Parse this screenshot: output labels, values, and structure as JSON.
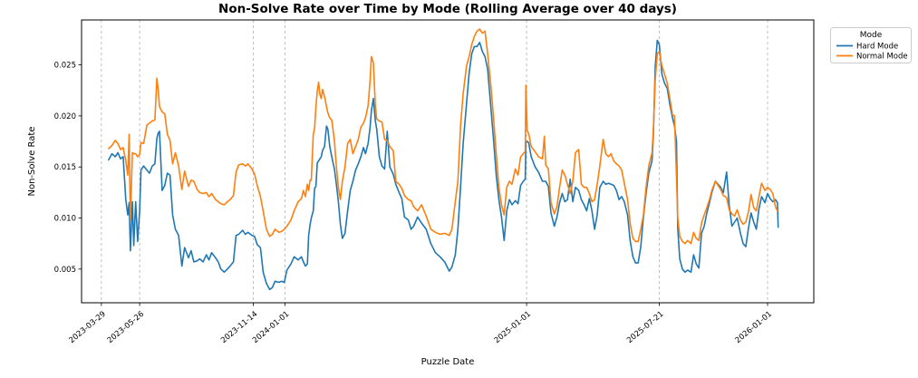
{
  "chart_data": {
    "type": "line",
    "title": "Non-Solve Rate over Time by Mode (Rolling Average over 40 days)",
    "xlabel": "Puzzle Date",
    "ylabel": "Non-Solve Rate",
    "legend_title": "Mode",
    "legend_position": "outside-right",
    "grid": "vertical-dashed",
    "x_tick_labels": [
      "2023-03-29",
      "2023-05-26",
      "2023-11-14",
      "2024-01-01",
      "2025-01-01",
      "2025-07-21",
      "2026-01-01"
    ],
    "y_tick_labels": [
      "0.005",
      "0.010",
      "0.015",
      "0.020",
      "0.025"
    ],
    "x_domain": [
      "2023-02-27",
      "2026-03-12"
    ],
    "y_domain": [
      0.0017,
      0.0294
    ],
    "dates": [
      "2023-04-09",
      "2023-04-14",
      "2023-04-19",
      "2023-04-23",
      "2023-04-27",
      "2023-05-01",
      "2023-05-05",
      "2023-05-08",
      "2023-05-10",
      "2023-05-12",
      "2023-05-15",
      "2023-05-17",
      "2023-05-20",
      "2023-05-23",
      "2023-05-26",
      "2023-05-28",
      "2023-06-01",
      "2023-06-06",
      "2023-06-10",
      "2023-06-14",
      "2023-06-18",
      "2023-06-21",
      "2023-06-23",
      "2023-06-25",
      "2023-06-29",
      "2023-07-03",
      "2023-07-07",
      "2023-07-11",
      "2023-07-15",
      "2023-07-19",
      "2023-07-24",
      "2023-07-29",
      "2023-08-02",
      "2023-08-08",
      "2023-08-12",
      "2023-08-16",
      "2023-08-21",
      "2023-08-25",
      "2023-08-30",
      "2023-09-04",
      "2023-09-08",
      "2023-09-12",
      "2023-09-18",
      "2023-09-22",
      "2023-09-26",
      "2023-10-01",
      "2023-10-06",
      "2023-10-10",
      "2023-10-15",
      "2023-10-19",
      "2023-10-23",
      "2023-10-29",
      "2023-11-02",
      "2023-11-06",
      "2023-11-12",
      "2023-11-16",
      "2023-11-20",
      "2023-11-25",
      "2023-11-29",
      "2023-12-04",
      "2023-12-09",
      "2023-12-13",
      "2023-12-17",
      "2023-12-23",
      "2023-12-27",
      "2023-12-31",
      "2024-01-04",
      "2024-01-10",
      "2024-01-15",
      "2024-01-21",
      "2024-01-26",
      "2024-01-29",
      "2024-02-01",
      "2024-02-04",
      "2024-02-06",
      "2024-02-08",
      "2024-02-10",
      "2024-02-13",
      "2024-02-15",
      "2024-02-17",
      "2024-02-19",
      "2024-02-21",
      "2024-02-23",
      "2024-02-25",
      "2024-02-27",
      "2024-03-01",
      "2024-03-04",
      "2024-03-06",
      "2024-03-09",
      "2024-03-12",
      "2024-03-16",
      "2024-03-19",
      "2024-03-22",
      "2024-03-25",
      "2024-03-28",
      "2024-04-01",
      "2024-04-05",
      "2024-04-09",
      "2024-04-13",
      "2024-04-17",
      "2024-04-21",
      "2024-04-25",
      "2024-04-29",
      "2024-05-02",
      "2024-05-06",
      "2024-05-09",
      "2024-05-11",
      "2024-05-14",
      "2024-05-17",
      "2024-05-19",
      "2024-05-23",
      "2024-05-27",
      "2024-05-31",
      "2024-06-04",
      "2024-06-08",
      "2024-06-13",
      "2024-06-17",
      "2024-06-22",
      "2024-06-26",
      "2024-06-30",
      "2024-07-06",
      "2024-07-10",
      "2024-07-14",
      "2024-07-20",
      "2024-07-26",
      "2024-08-02",
      "2024-08-09",
      "2024-08-16",
      "2024-08-23",
      "2024-08-30",
      "2024-09-06",
      "2024-09-10",
      "2024-09-15",
      "2024-09-19",
      "2024-09-23",
      "2024-09-27",
      "2024-10-02",
      "2024-10-06",
      "2024-10-10",
      "2024-10-14",
      "2024-10-18",
      "2024-10-22",
      "2024-10-26",
      "2024-10-30",
      "2024-11-03",
      "2024-11-08",
      "2024-11-12",
      "2024-11-16",
      "2024-11-20",
      "2024-11-24",
      "2024-11-28",
      "2024-12-02",
      "2024-12-06",
      "2024-12-10",
      "2024-12-15",
      "2024-12-19",
      "2024-12-23",
      "2024-12-27",
      "2024-12-30",
      "2024-12-31",
      "2025-01-02",
      "2025-01-04",
      "2025-01-08",
      "2025-01-14",
      "2025-01-19",
      "2025-01-25",
      "2025-01-28",
      "2025-01-30",
      "2025-02-03",
      "2025-02-07",
      "2025-02-12",
      "2025-02-16",
      "2025-02-20",
      "2025-02-24",
      "2025-02-28",
      "2025-03-04",
      "2025-03-08",
      "2025-03-12",
      "2025-03-16",
      "2025-03-21",
      "2025-03-25",
      "2025-03-29",
      "2025-04-02",
      "2025-04-06",
      "2025-04-10",
      "2025-04-14",
      "2025-04-18",
      "2025-04-22",
      "2025-04-27",
      "2025-05-01",
      "2025-05-05",
      "2025-05-09",
      "2025-05-13",
      "2025-05-17",
      "2025-05-21",
      "2025-05-25",
      "2025-05-29",
      "2025-06-03",
      "2025-06-07",
      "2025-06-11",
      "2025-06-15",
      "2025-06-19",
      "2025-06-23",
      "2025-06-27",
      "2025-07-01",
      "2025-07-05",
      "2025-07-10",
      "2025-07-12",
      "2025-07-15",
      "2025-07-18",
      "2025-07-21",
      "2025-07-25",
      "2025-07-29",
      "2025-08-02",
      "2025-08-06",
      "2025-08-10",
      "2025-08-13",
      "2025-08-16",
      "2025-08-18",
      "2025-08-21",
      "2025-08-25",
      "2025-08-29",
      "2025-09-02",
      "2025-09-07",
      "2025-09-11",
      "2025-09-15",
      "2025-09-19",
      "2025-09-23",
      "2025-09-27",
      "2025-10-01",
      "2025-10-05",
      "2025-10-09",
      "2025-10-14",
      "2025-10-18",
      "2025-10-22",
      "2025-10-26",
      "2025-10-31",
      "2025-11-04",
      "2025-11-08",
      "2025-11-12",
      "2025-11-16",
      "2025-11-21",
      "2025-11-25",
      "2025-11-29",
      "2025-12-03",
      "2025-12-07",
      "2025-12-11",
      "2025-12-15",
      "2025-12-19",
      "2025-12-23",
      "2025-12-28",
      "2026-01-01",
      "2026-01-05",
      "2026-01-09",
      "2026-01-13",
      "2026-01-16",
      "2026-01-17"
    ],
    "series": [
      {
        "name": "Hard Mode",
        "color": "#1f77b4",
        "values": [
          0.0157,
          0.0163,
          0.016,
          0.0164,
          0.0158,
          0.016,
          0.0118,
          0.0103,
          0.0115,
          0.0068,
          0.0116,
          0.0073,
          0.0116,
          0.0077,
          0.0107,
          0.0147,
          0.0151,
          0.0147,
          0.0144,
          0.0151,
          0.0153,
          0.0178,
          0.0183,
          0.0185,
          0.0127,
          0.0132,
          0.0144,
          0.0142,
          0.0103,
          0.0089,
          0.0083,
          0.0053,
          0.0071,
          0.0061,
          0.0068,
          0.0057,
          0.0058,
          0.006,
          0.0057,
          0.0064,
          0.0059,
          0.0066,
          0.0061,
          0.0057,
          0.005,
          0.0047,
          0.005,
          0.0053,
          0.0057,
          0.0083,
          0.0084,
          0.0088,
          0.0084,
          0.0086,
          0.0083,
          0.0082,
          0.0074,
          0.0071,
          0.0047,
          0.0036,
          0.003,
          0.0032,
          0.0038,
          0.0037,
          0.0038,
          0.0037,
          0.0049,
          0.0055,
          0.0062,
          0.0059,
          0.0062,
          0.0057,
          0.0053,
          0.0055,
          0.0083,
          0.0093,
          0.01,
          0.0107,
          0.0129,
          0.0131,
          0.0154,
          0.0156,
          0.0158,
          0.016,
          0.0166,
          0.017,
          0.019,
          0.0187,
          0.017,
          0.016,
          0.0148,
          0.0133,
          0.0116,
          0.0094,
          0.008,
          0.0085,
          0.0107,
          0.0127,
          0.0136,
          0.0147,
          0.0153,
          0.016,
          0.0169,
          0.0163,
          0.0173,
          0.0189,
          0.0205,
          0.0217,
          0.0195,
          0.0187,
          0.016,
          0.0151,
          0.0148,
          0.0185,
          0.015,
          0.0143,
          0.0133,
          0.0125,
          0.0119,
          0.0101,
          0.0098,
          0.0089,
          0.0092,
          0.0101,
          0.0095,
          0.0089,
          0.0075,
          0.0066,
          0.0062,
          0.0057,
          0.0048,
          0.0052,
          0.0064,
          0.0089,
          0.013,
          0.0173,
          0.0212,
          0.0242,
          0.0261,
          0.0268,
          0.0268,
          0.0272,
          0.0263,
          0.0258,
          0.0246,
          0.0208,
          0.0177,
          0.0142,
          0.0118,
          0.0101,
          0.0078,
          0.0107,
          0.0118,
          0.0113,
          0.0117,
          0.0114,
          0.0132,
          0.0136,
          0.0138,
          0.0174,
          0.0175,
          0.0174,
          0.016,
          0.015,
          0.0145,
          0.0136,
          0.0136,
          0.0136,
          0.0131,
          0.0105,
          0.0092,
          0.0101,
          0.0115,
          0.0124,
          0.0116,
          0.0118,
          0.0138,
          0.0116,
          0.013,
          0.0127,
          0.0118,
          0.0113,
          0.0107,
          0.0119,
          0.0107,
          0.0089,
          0.0103,
          0.013,
          0.0136,
          0.0133,
          0.0134,
          0.0133,
          0.0132,
          0.0127,
          0.0118,
          0.0121,
          0.0116,
          0.0103,
          0.0077,
          0.0062,
          0.0056,
          0.0056,
          0.0072,
          0.0101,
          0.0124,
          0.0144,
          0.0156,
          0.0182,
          0.0249,
          0.0274,
          0.027,
          0.0241,
          0.0232,
          0.0227,
          0.0211,
          0.0198,
          0.019,
          0.0175,
          0.009,
          0.006,
          0.005,
          0.0047,
          0.0049,
          0.0047,
          0.0064,
          0.0055,
          0.0051,
          0.0085,
          0.0092,
          0.0105,
          0.0115,
          0.0126,
          0.0136,
          0.0133,
          0.013,
          0.0125,
          0.0145,
          0.0112,
          0.0092,
          0.0096,
          0.01,
          0.0085,
          0.0075,
          0.0072,
          0.009,
          0.0105,
          0.0096,
          0.0089,
          0.0109,
          0.0121,
          0.0115,
          0.0124,
          0.0119,
          0.0116,
          0.0118,
          0.0115,
          0.0091
        ]
      },
      {
        "name": "Normal Mode",
        "color": "#ff7f0e",
        "values": [
          0.0168,
          0.0171,
          0.0176,
          0.0173,
          0.0167,
          0.0169,
          0.0156,
          0.0142,
          0.0182,
          0.0098,
          0.0164,
          0.0163,
          0.0163,
          0.016,
          0.0162,
          0.0174,
          0.0173,
          0.0191,
          0.0193,
          0.0195,
          0.0196,
          0.0237,
          0.0226,
          0.0209,
          0.0204,
          0.0202,
          0.0182,
          0.0176,
          0.0153,
          0.0164,
          0.0151,
          0.0128,
          0.0146,
          0.0131,
          0.0137,
          0.0136,
          0.0128,
          0.0125,
          0.0124,
          0.0125,
          0.0121,
          0.0124,
          0.0118,
          0.0116,
          0.0114,
          0.0113,
          0.0116,
          0.0118,
          0.0122,
          0.0145,
          0.0152,
          0.0153,
          0.0151,
          0.0153,
          0.0148,
          0.0143,
          0.0132,
          0.0121,
          0.0107,
          0.0089,
          0.0082,
          0.0084,
          0.0089,
          0.0086,
          0.0087,
          0.0089,
          0.0092,
          0.0098,
          0.0107,
          0.0116,
          0.0119,
          0.0127,
          0.0121,
          0.0133,
          0.0127,
          0.0137,
          0.0137,
          0.0182,
          0.0188,
          0.0209,
          0.0224,
          0.0233,
          0.0221,
          0.0217,
          0.0226,
          0.0219,
          0.0209,
          0.0203,
          0.0198,
          0.0196,
          0.0176,
          0.015,
          0.013,
          0.0118,
          0.0136,
          0.015,
          0.0173,
          0.0177,
          0.0163,
          0.017,
          0.0177,
          0.0189,
          0.0193,
          0.0198,
          0.021,
          0.0235,
          0.0258,
          0.0252,
          0.021,
          0.0197,
          0.0195,
          0.0194,
          0.0177,
          0.0176,
          0.017,
          0.0166,
          0.0136,
          0.0133,
          0.0129,
          0.0122,
          0.0118,
          0.0117,
          0.0111,
          0.0107,
          0.0113,
          0.0102,
          0.0089,
          0.0086,
          0.0084,
          0.0085,
          0.0083,
          0.0089,
          0.0116,
          0.0136,
          0.019,
          0.0222,
          0.0249,
          0.0258,
          0.027,
          0.0278,
          0.0283,
          0.0285,
          0.0281,
          0.0283,
          0.0261,
          0.0229,
          0.0198,
          0.0163,
          0.013,
          0.0113,
          0.0103,
          0.013,
          0.0136,
          0.0133,
          0.0148,
          0.0142,
          0.016,
          0.0163,
          0.0165,
          0.023,
          0.0185,
          0.0183,
          0.017,
          0.0165,
          0.016,
          0.0158,
          0.018,
          0.0152,
          0.0148,
          0.0115,
          0.0104,
          0.0111,
          0.013,
          0.0147,
          0.0142,
          0.0133,
          0.0124,
          0.0136,
          0.0164,
          0.0167,
          0.0133,
          0.013,
          0.013,
          0.0124,
          0.0116,
          0.0118,
          0.0133,
          0.0151,
          0.0177,
          0.0163,
          0.016,
          0.0163,
          0.0156,
          0.0153,
          0.0151,
          0.0147,
          0.0134,
          0.0118,
          0.0094,
          0.008,
          0.0077,
          0.0077,
          0.0089,
          0.0103,
          0.013,
          0.0151,
          0.0164,
          0.0187,
          0.0236,
          0.0261,
          0.0263,
          0.0249,
          0.0241,
          0.0232,
          0.0217,
          0.0201,
          0.02,
          0.014,
          0.01,
          0.0082,
          0.0077,
          0.0075,
          0.0078,
          0.0075,
          0.0086,
          0.008,
          0.0078,
          0.0095,
          0.0103,
          0.011,
          0.0118,
          0.0128,
          0.0136,
          0.0132,
          0.0128,
          0.0122,
          0.012,
          0.0108,
          0.0104,
          0.0102,
          0.0108,
          0.0098,
          0.0094,
          0.0096,
          0.0106,
          0.0123,
          0.011,
          0.0107,
          0.0121,
          0.0134,
          0.0127,
          0.013,
          0.0128,
          0.0124,
          0.0111,
          0.0107,
          0.0107
        ]
      }
    ]
  }
}
